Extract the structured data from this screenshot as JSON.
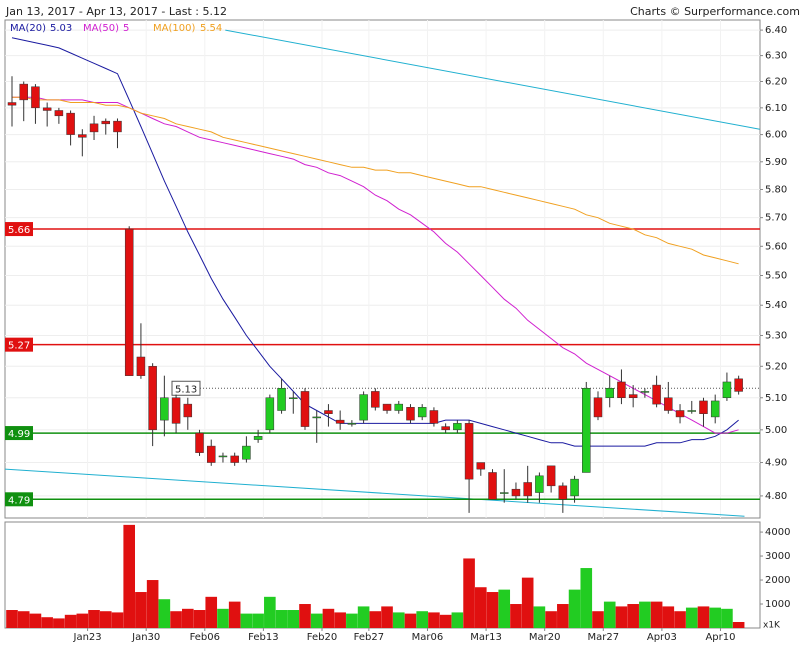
{
  "chart_data": {
    "type": "candlestick",
    "title": "Jan 13, 2017 - Apr 13, 2017 - Last : 5.12",
    "source": "Charts © Surperformance.com",
    "log": true,
    "grid": true,
    "up_color": "#22cc22",
    "down_color": "#e01010",
    "categories": [
      null,
      null,
      null,
      null,
      null,
      "Jan23",
      null,
      null,
      null,
      null,
      "Jan30",
      null,
      null,
      null,
      null,
      "Feb06",
      null,
      null,
      null,
      null,
      "Feb13",
      null,
      null,
      null,
      null,
      "Feb20",
      null,
      null,
      null,
      "Feb27",
      null,
      null,
      null,
      null,
      "Mar06",
      null,
      null,
      null,
      null,
      "Mar13",
      null,
      null,
      null,
      null,
      "Mar20",
      null,
      null,
      null,
      null,
      "Mar27",
      null,
      null,
      null,
      null,
      "Apr03",
      null,
      null,
      null,
      null,
      "Apr10",
      null,
      null,
      null
    ],
    "open": [
      6.12,
      6.19,
      6.18,
      6.1,
      6.09,
      6.08,
      6.0,
      6.04,
      6.05,
      6.05,
      5.66,
      5.23,
      5.2,
      5.03,
      5.1,
      5.08,
      4.99,
      4.95,
      4.92,
      4.92,
      4.91,
      4.97,
      5.0,
      5.06,
      5.1,
      5.12,
      5.04,
      5.06,
      5.03,
      5.02,
      5.03,
      5.12,
      5.08,
      5.06,
      5.07,
      5.04,
      5.06,
      5.01,
      5.0,
      5.02,
      4.9,
      4.87,
      4.81,
      4.82,
      4.84,
      4.81,
      4.89,
      4.83,
      4.8,
      4.87,
      5.1,
      5.1,
      5.15,
      5.11,
      5.12,
      5.14,
      5.1,
      5.06,
      5.06,
      5.09,
      5.04,
      5.1,
      5.16
    ],
    "high": [
      6.22,
      6.2,
      6.19,
      6.12,
      6.1,
      6.09,
      6.02,
      6.07,
      6.06,
      6.06,
      5.67,
      5.34,
      5.21,
      5.17,
      5.11,
      5.1,
      5.0,
      4.97,
      4.93,
      4.93,
      4.98,
      5.0,
      5.11,
      5.16,
      5.12,
      5.13,
      5.06,
      5.08,
      5.06,
      5.03,
      5.12,
      5.13,
      5.08,
      5.09,
      5.08,
      5.08,
      5.07,
      5.02,
      5.03,
      5.03,
      4.9,
      4.88,
      4.88,
      4.84,
      4.89,
      4.87,
      4.89,
      4.84,
      4.86,
      5.15,
      5.12,
      5.17,
      5.19,
      5.14,
      5.13,
      5.17,
      5.15,
      5.08,
      5.09,
      5.1,
      5.11,
      5.18,
      5.17
    ],
    "low": [
      6.03,
      6.05,
      6.04,
      6.03,
      6.04,
      5.96,
      5.92,
      5.98,
      6.0,
      5.95,
      5.17,
      5.16,
      4.95,
      4.98,
      4.99,
      5.0,
      4.92,
      4.89,
      4.9,
      4.89,
      4.9,
      4.96,
      4.99,
      5.05,
      5.05,
      5.0,
      4.96,
      5.01,
      5.0,
      5.01,
      5.02,
      5.06,
      5.05,
      5.05,
      5.02,
      5.03,
      5.01,
      4.99,
      4.99,
      4.75,
      4.86,
      4.79,
      4.78,
      4.79,
      4.78,
      4.78,
      4.81,
      4.75,
      4.78,
      4.87,
      5.03,
      5.07,
      5.08,
      5.07,
      5.1,
      5.07,
      5.05,
      5.02,
      5.05,
      5.01,
      5.02,
      5.09,
      5.11
    ],
    "close": [
      6.11,
      6.13,
      6.1,
      6.09,
      6.07,
      6.0,
      5.99,
      6.01,
      6.04,
      6.01,
      5.17,
      5.17,
      5.0,
      5.1,
      5.02,
      5.04,
      4.93,
      4.9,
      4.92,
      4.9,
      4.95,
      4.98,
      5.1,
      5.13,
      5.1,
      5.01,
      5.04,
      5.05,
      5.02,
      5.02,
      5.11,
      5.07,
      5.06,
      5.08,
      5.03,
      5.07,
      5.02,
      5.0,
      5.02,
      4.85,
      4.88,
      4.79,
      4.81,
      4.8,
      4.8,
      4.86,
      4.83,
      4.79,
      4.85,
      5.13,
      5.04,
      5.13,
      5.1,
      5.1,
      5.12,
      5.08,
      5.06,
      5.04,
      5.06,
      5.05,
      5.09,
      5.15,
      5.12
    ],
    "ylim": [
      4.735,
      6.44
    ],
    "yticks": [
      {
        "value": 4.8,
        "label": "4.80"
      },
      {
        "value": 4.9,
        "label": "4.90"
      },
      {
        "value": 5.0,
        "label": "5.00"
      },
      {
        "value": 5.1,
        "label": "5.10"
      },
      {
        "value": 5.2,
        "label": "5.20"
      },
      {
        "value": 5.3,
        "label": "5.30"
      },
      {
        "value": 5.4,
        "label": "5.40"
      },
      {
        "value": 5.5,
        "label": "5.50"
      },
      {
        "value": 5.6,
        "label": "5.60"
      },
      {
        "value": 5.7,
        "label": "5.70"
      },
      {
        "value": 5.8,
        "label": "5.80"
      },
      {
        "value": 5.9,
        "label": "5.90"
      },
      {
        "value": 6.0,
        "label": "6.00"
      },
      {
        "value": 6.1,
        "label": "6.10"
      },
      {
        "value": 6.2,
        "label": "6.20"
      },
      {
        "value": 6.3,
        "label": "6.30"
      },
      {
        "value": 6.4,
        "label": "6.40"
      }
    ],
    "moving_averages": [
      {
        "name": "MA(20)",
        "last": 5.03,
        "color": "#1a1aa0",
        "values": [
          6.37,
          6.36,
          6.35,
          6.34,
          6.33,
          6.31,
          6.29,
          6.27,
          6.25,
          6.23,
          6.13,
          6.03,
          5.93,
          5.83,
          5.74,
          5.65,
          5.57,
          5.49,
          5.42,
          5.36,
          5.3,
          5.25,
          5.2,
          5.16,
          5.12,
          5.08,
          5.06,
          5.04,
          5.02,
          5.02,
          5.02,
          5.02,
          5.02,
          5.02,
          5.02,
          5.02,
          5.02,
          5.03,
          5.03,
          5.03,
          5.02,
          5.01,
          5.0,
          4.99,
          4.98,
          4.97,
          4.96,
          4.96,
          4.95,
          4.95,
          4.95,
          4.95,
          4.95,
          4.95,
          4.95,
          4.96,
          4.96,
          4.96,
          4.97,
          4.97,
          4.98,
          5.0,
          5.03
        ]
      },
      {
        "name": "MA(50)",
        "last": 5.0,
        "color": "#d020d0",
        "values": [
          6.14,
          6.14,
          6.14,
          6.13,
          6.13,
          6.13,
          6.13,
          6.12,
          6.12,
          6.12,
          6.1,
          6.08,
          6.06,
          6.04,
          6.03,
          6.01,
          5.99,
          5.98,
          5.97,
          5.96,
          5.95,
          5.94,
          5.93,
          5.92,
          5.91,
          5.89,
          5.88,
          5.86,
          5.85,
          5.83,
          5.81,
          5.78,
          5.76,
          5.73,
          5.71,
          5.68,
          5.65,
          5.61,
          5.58,
          5.54,
          5.5,
          5.46,
          5.42,
          5.39,
          5.35,
          5.32,
          5.29,
          5.26,
          5.24,
          5.21,
          5.19,
          5.17,
          5.15,
          5.13,
          5.11,
          5.09,
          5.07,
          5.05,
          5.03,
          5.01,
          4.99,
          4.99,
          5.0
        ]
      },
      {
        "name": "MA(100)",
        "last": 5.54,
        "color": "#f0a020",
        "values": [
          6.14,
          6.14,
          6.13,
          6.13,
          6.13,
          6.12,
          6.12,
          6.12,
          6.11,
          6.11,
          6.1,
          6.08,
          6.07,
          6.06,
          6.04,
          6.03,
          6.02,
          6.01,
          5.99,
          5.98,
          5.97,
          5.96,
          5.95,
          5.94,
          5.93,
          5.92,
          5.91,
          5.9,
          5.89,
          5.88,
          5.88,
          5.87,
          5.87,
          5.86,
          5.86,
          5.85,
          5.84,
          5.83,
          5.82,
          5.81,
          5.81,
          5.8,
          5.79,
          5.78,
          5.77,
          5.76,
          5.75,
          5.74,
          5.73,
          5.71,
          5.7,
          5.68,
          5.67,
          5.66,
          5.64,
          5.63,
          5.61,
          5.6,
          5.59,
          5.57,
          5.56,
          5.55,
          5.54
        ]
      }
    ],
    "levels": [
      {
        "value": 5.66,
        "color": "#e01010"
      },
      {
        "value": 5.27,
        "color": "#e01010"
      },
      {
        "value": 4.99,
        "color": "#109010"
      },
      {
        "value": 4.79,
        "color": "#109010"
      }
    ],
    "price_marker": 5.13,
    "trend_lines": [
      {
        "color": "#20b0d0",
        "start": [
          18.2,
          6.4
        ],
        "end": [
          63.8,
          6.02
        ]
      },
      {
        "color": "#20b0d0",
        "start": [
          -0.6,
          4.88
        ],
        "end": [
          62.5,
          4.74
        ]
      }
    ],
    "volume": {
      "unit": "x1K",
      "values": [
        750,
        700,
        600,
        450,
        400,
        550,
        600,
        750,
        700,
        650,
        4300,
        1500,
        2000,
        1200,
        700,
        800,
        750,
        1300,
        800,
        1100,
        600,
        600,
        1300,
        750,
        750,
        1000,
        600,
        800,
        650,
        600,
        900,
        700,
        900,
        650,
        600,
        700,
        650,
        550,
        650,
        2900,
        1700,
        1500,
        1600,
        1000,
        2100,
        900,
        700,
        1000,
        1600,
        2500,
        700,
        1100,
        900,
        1000,
        1100,
        1100,
        900,
        700,
        850,
        900,
        850,
        800,
        250
      ],
      "ylim": [
        0,
        4420
      ],
      "yticks": [
        {
          "value": 1000,
          "label": "1000"
        },
        {
          "value": 2000,
          "label": "2000"
        },
        {
          "value": 3000,
          "label": "3000"
        },
        {
          "value": 4000,
          "label": "4000"
        }
      ]
    }
  }
}
